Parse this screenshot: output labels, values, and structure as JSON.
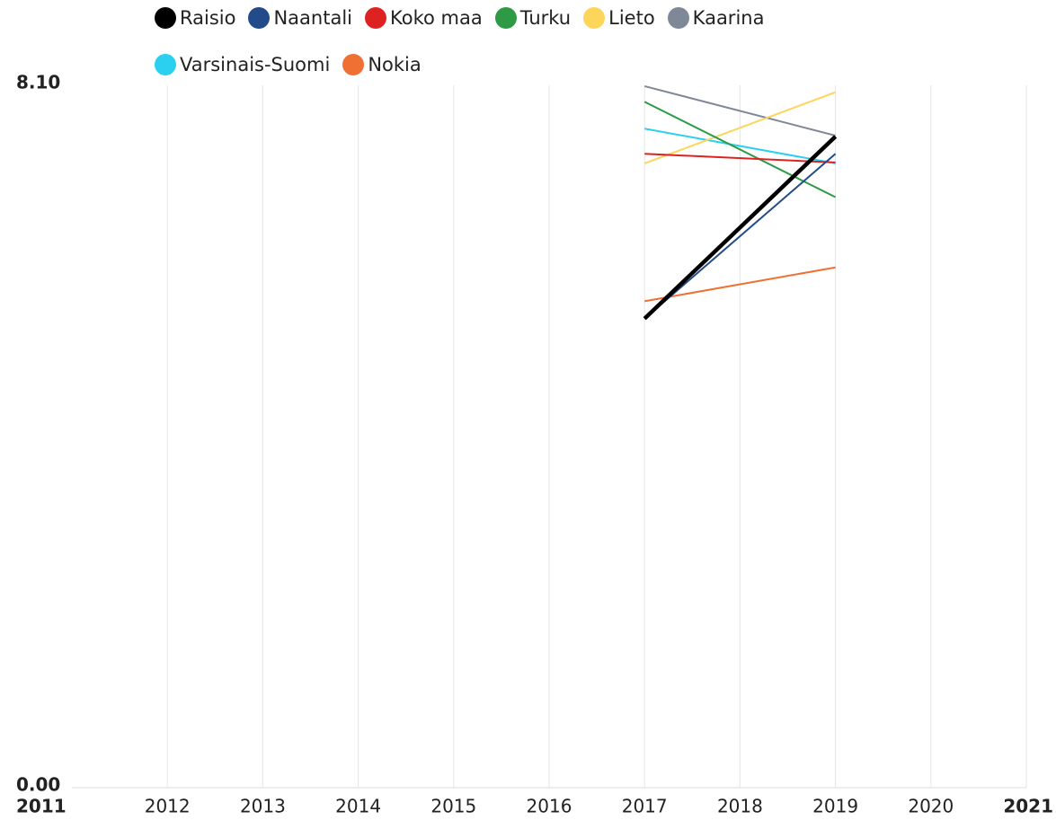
{
  "chart_data": {
    "type": "line",
    "x": [
      2017,
      2019
    ],
    "series": [
      {
        "name": "Raisio",
        "color": "#000000",
        "values": [
          5.41,
          7.51
        ]
      },
      {
        "name": "Naantali",
        "color": "#234b8a",
        "values": [
          5.41,
          7.31
        ]
      },
      {
        "name": "Koko maa",
        "color": "#dd2222",
        "values": [
          7.31,
          7.21
        ]
      },
      {
        "name": "Turku",
        "color": "#2e9a45",
        "values": [
          7.91,
          6.81
        ]
      },
      {
        "name": "Lieto",
        "color": "#fdd55a",
        "values": [
          7.2,
          8.02
        ]
      },
      {
        "name": "Kaarina",
        "color": "#7f8896",
        "values": [
          8.09,
          7.52
        ]
      },
      {
        "name": "Varsinais-Suomi",
        "color": "#2bd0f0",
        "values": [
          7.6,
          7.2
        ]
      },
      {
        "name": "Nokia",
        "color": "#f07033",
        "values": [
          5.61,
          6.0
        ]
      }
    ],
    "xlim": [
      2011,
      2021
    ],
    "xticks": [
      2011,
      2012,
      2013,
      2014,
      2015,
      2016,
      2017,
      2018,
      2019,
      2020,
      2021
    ],
    "ylim": [
      0,
      8.1
    ],
    "yticks": [
      {
        "value": 0,
        "label": "0.00"
      },
      {
        "value": 8.1,
        "label": "8.10"
      }
    ],
    "grid": true
  }
}
